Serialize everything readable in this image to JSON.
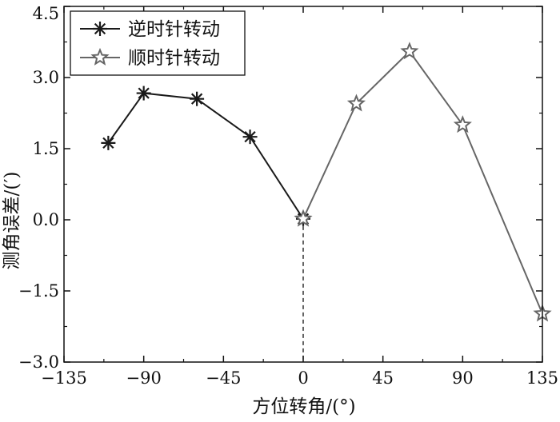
{
  "chart_data": {
    "type": "line",
    "xlabel": "方位转角/(°)",
    "ylabel": "测角误差/(′)",
    "xlim": [
      -135,
      135
    ],
    "ylim": [
      -3.0,
      4.5
    ],
    "x_ticks": [
      -135,
      -90,
      -45,
      0,
      45,
      90,
      135
    ],
    "x_tick_labels": [
      "−135",
      "−90",
      "−45",
      "0",
      "45",
      "90",
      "135"
    ],
    "y_ticks": [
      -3.0,
      -1.5,
      0.0,
      1.5,
      3.0,
      4.5
    ],
    "y_tick_labels": [
      "−3.0",
      "−1.5",
      "0.0",
      "1.5",
      "3.0",
      "4.5"
    ],
    "grid": false,
    "legend_position": "top-left",
    "reference_line": {
      "x": 0,
      "style": "dashed"
    },
    "series": [
      {
        "name": "逆时针转动",
        "marker": "asterisk",
        "color": "#1a1a1a",
        "x": [
          -110,
          -90,
          -60,
          -30,
          0
        ],
        "y": [
          1.62,
          2.67,
          2.55,
          1.75,
          0.02
        ]
      },
      {
        "name": "顺时针转动",
        "marker": "star",
        "color": "#666666",
        "x": [
          0,
          30,
          60,
          90,
          135
        ],
        "y": [
          0.02,
          2.45,
          3.55,
          2.0,
          -1.98
        ]
      }
    ]
  }
}
